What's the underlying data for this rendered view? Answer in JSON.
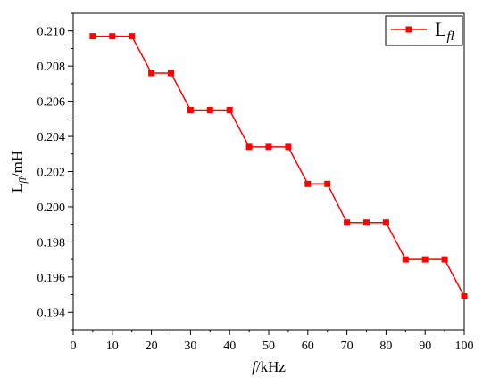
{
  "chart_data": {
    "type": "line",
    "x": [
      5,
      10,
      15,
      20,
      25,
      30,
      35,
      40,
      45,
      50,
      55,
      60,
      65,
      70,
      75,
      80,
      85,
      90,
      95,
      100
    ],
    "series": [
      {
        "name": "L_fl",
        "name_main": "L",
        "name_sub": "fl",
        "color": "#ff0000",
        "marker": "square",
        "values": [
          0.2097,
          0.2097,
          0.2097,
          0.2076,
          0.2076,
          0.2055,
          0.2055,
          0.2055,
          0.2034,
          0.2034,
          0.2034,
          0.2013,
          0.2013,
          0.1991,
          0.1991,
          0.1991,
          0.197,
          0.197,
          0.197,
          0.1949
        ]
      }
    ],
    "xlabel": {
      "italic": "f",
      "rest": "/kHz"
    },
    "ylabel": {
      "main": "L",
      "sub": "fl",
      "rest": "/mH"
    },
    "xlim": [
      0,
      100
    ],
    "ylim": [
      0.193,
      0.211
    ],
    "xticks": [
      0,
      10,
      20,
      30,
      40,
      50,
      60,
      70,
      80,
      90,
      100
    ],
    "yticks": [
      "0.194",
      "0.196",
      "0.198",
      "0.200",
      "0.202",
      "0.204",
      "0.206",
      "0.208",
      "0.210"
    ],
    "legend_position": "top-right",
    "grid": false
  }
}
